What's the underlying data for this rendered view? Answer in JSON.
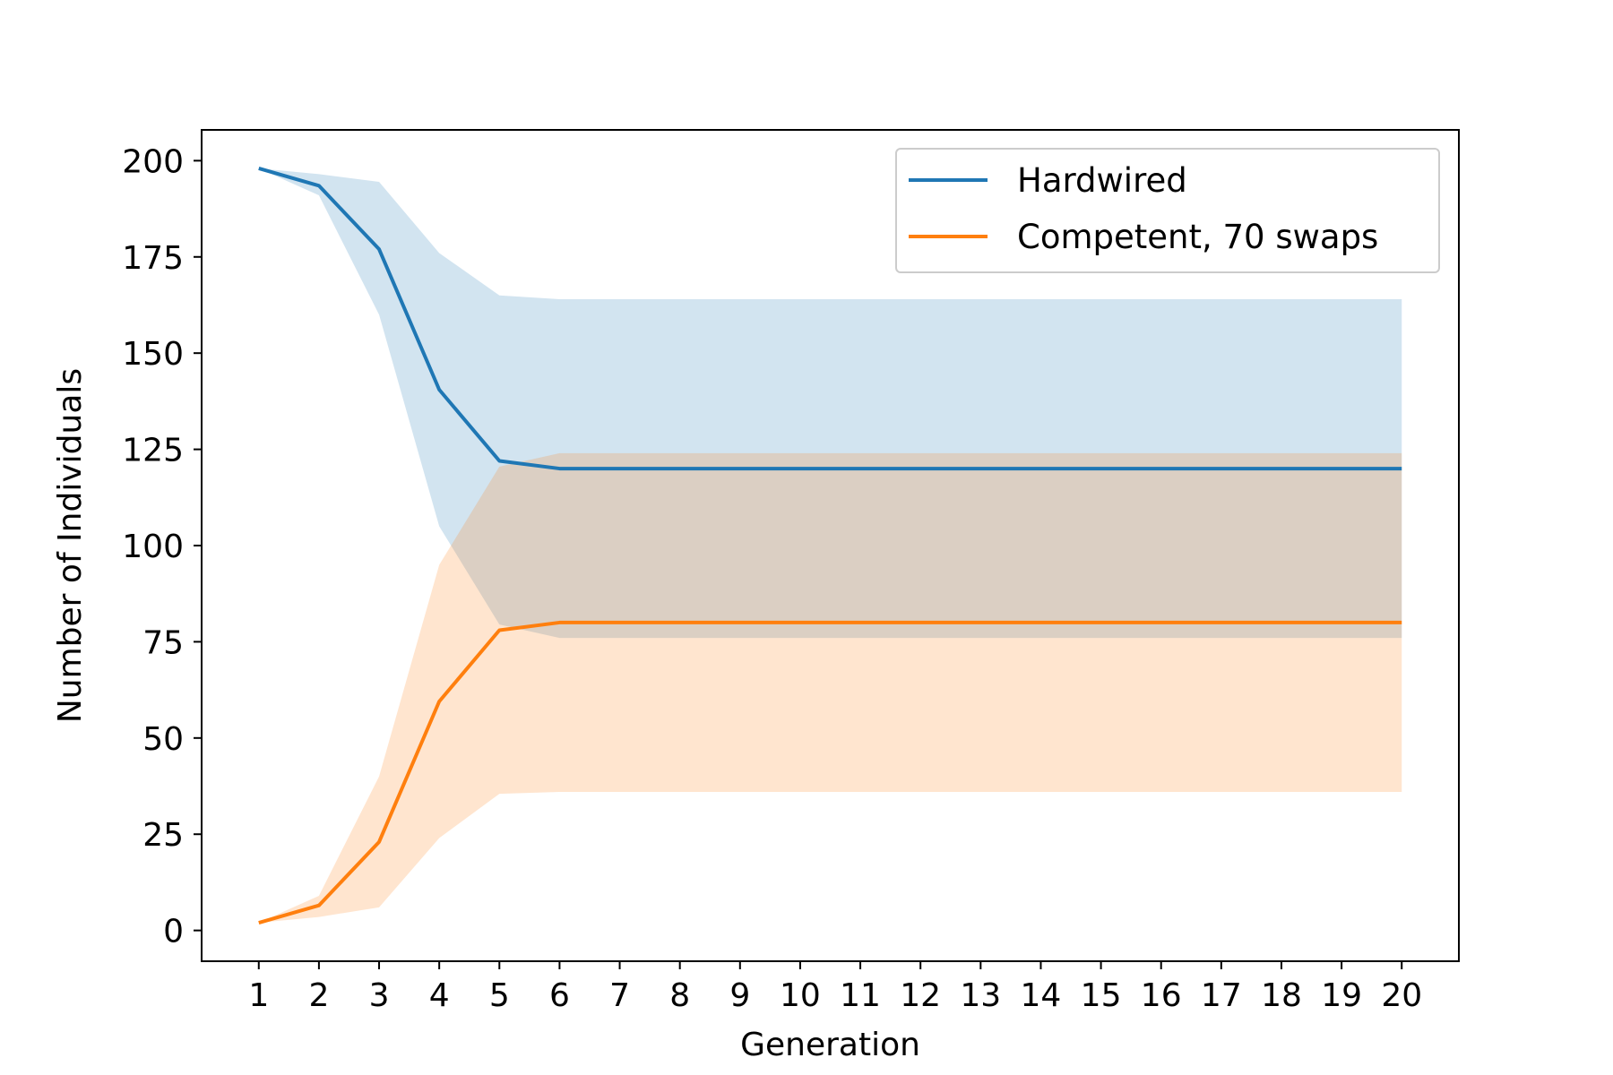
{
  "chart_data": {
    "type": "line",
    "title": "",
    "xlabel": "Generation",
    "ylabel": "Number of Individuals",
    "x": [
      1,
      2,
      3,
      4,
      5,
      6,
      7,
      8,
      9,
      10,
      11,
      12,
      13,
      14,
      15,
      16,
      17,
      18,
      19,
      20
    ],
    "xlim": [
      0.05,
      20.95
    ],
    "ylim": [
      -8,
      208
    ],
    "yticks": [
      0,
      25,
      50,
      75,
      100,
      125,
      150,
      175,
      200
    ],
    "grid": false,
    "legend_position": "top-right",
    "series": [
      {
        "name": "Hardwired",
        "color": "#1f77b4",
        "band_color": "#1f77b4",
        "values": [
          198,
          193.5,
          177,
          140.5,
          122,
          120,
          120,
          120,
          120,
          120,
          120,
          120,
          120,
          120,
          120,
          120,
          120,
          120,
          120,
          120
        ],
        "upper": [
          198,
          196.5,
          194.5,
          176,
          165,
          164,
          164,
          164,
          164,
          164,
          164,
          164,
          164,
          164,
          164,
          164,
          164,
          164,
          164,
          164
        ],
        "lower": [
          198,
          191,
          160,
          105,
          79.5,
          76,
          76,
          76,
          76,
          76,
          76,
          76,
          76,
          76,
          76,
          76,
          76,
          76,
          76,
          76
        ]
      },
      {
        "name": "Competent, 70 swaps",
        "color": "#ff7f0e",
        "band_color": "#ff7f0e",
        "values": [
          2,
          6.5,
          23,
          59.5,
          78,
          80,
          80,
          80,
          80,
          80,
          80,
          80,
          80,
          80,
          80,
          80,
          80,
          80,
          80,
          80
        ],
        "upper": [
          2,
          9,
          40,
          95,
          120.5,
          124,
          124,
          124,
          124,
          124,
          124,
          124,
          124,
          124,
          124,
          124,
          124,
          124,
          124,
          124
        ],
        "lower": [
          2,
          3.5,
          6,
          24,
          35.5,
          36,
          36,
          36,
          36,
          36,
          36,
          36,
          36,
          36,
          36,
          36,
          36,
          36,
          36,
          36
        ]
      }
    ]
  }
}
